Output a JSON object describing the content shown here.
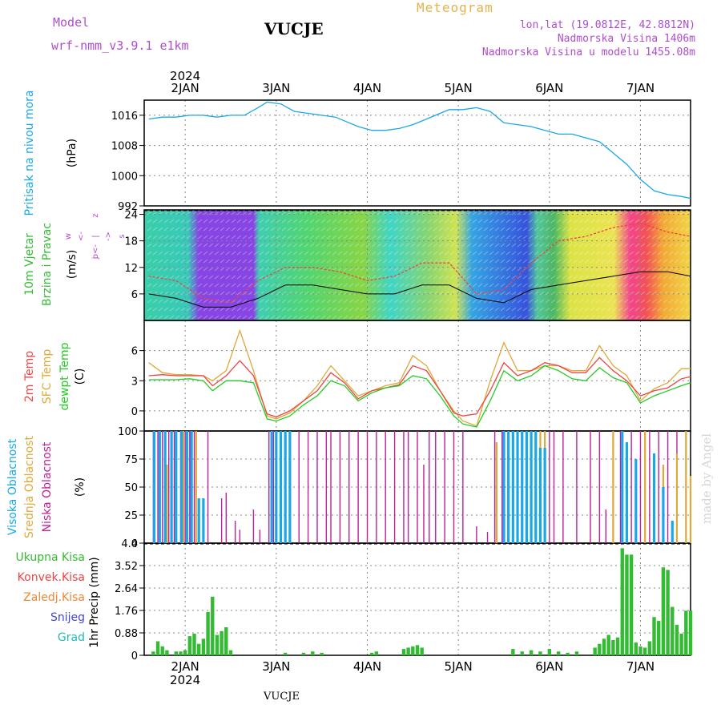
{
  "header": {
    "model_label": "Model",
    "model_name": "wrf-nmm_v3.9.1 e1km",
    "station": "VUCJE",
    "meteogram_label": "Meteogram",
    "lonlat": "lon,lat (19.0812E, 42.8812N)",
    "elevation": "Nadmorska Visina 1406m",
    "model_elevation": "Nadmorska Visina u modelu 1455.08m"
  },
  "footer": {
    "station": "VUCJE",
    "signature": "made by Angel"
  },
  "time_axis": {
    "year_label": "2024",
    "day_labels": [
      "2JAN",
      "3JAN",
      "4JAN",
      "5JAN",
      "6JAN",
      "7JAN"
    ]
  },
  "colors": {
    "pressure": "#1aa7e6",
    "temp2m": "#ee4444",
    "sfc": "#e0a838",
    "dewpt": "#22cc22",
    "wind_speed": "#000000",
    "gust": "#ee4444",
    "cloud_high": "#1aa7e6",
    "cloud_mid": "#e0a838",
    "cloud_low": "#c0209a",
    "precip_total": "#33bb33",
    "precip_conv": "#ee4444",
    "precip_frz": "#ee8833",
    "precip_snow": "#4444dd",
    "precip_hail": "#22bbbb"
  },
  "chart_data": [
    {
      "type": "line",
      "panel": "pressure",
      "title_parts": [
        "Pritisak na nivou mora",
        "(hPa)"
      ],
      "ylim": [
        992,
        1020
      ],
      "yticks": [
        992,
        1000,
        1008,
        1016
      ],
      "x": [
        1.6,
        1.75,
        1.9,
        2.05,
        2.2,
        2.35,
        2.5,
        2.65,
        2.8,
        2.9,
        3.05,
        3.2,
        3.35,
        3.5,
        3.65,
        3.8,
        3.9,
        4.05,
        4.2,
        4.35,
        4.5,
        4.65,
        4.8,
        4.9,
        5.05,
        5.2,
        5.35,
        5.5,
        5.65,
        5.8,
        5.95,
        6.1,
        6.25,
        6.4,
        6.55,
        6.7,
        6.85,
        7.0,
        7.15,
        7.3,
        7.45,
        7.55
      ],
      "series": [
        {
          "values": [
            1015,
            1015.5,
            1015.5,
            1016,
            1016,
            1015.5,
            1016,
            1016,
            1018,
            1019.5,
            1019,
            1017,
            1016.5,
            1016,
            1015.5,
            1014,
            1013,
            1012,
            1012,
            1012.5,
            1013.5,
            1015,
            1016.5,
            1017.5,
            1017.5,
            1018,
            1017,
            1014,
            1013.5,
            1013,
            1012,
            1011,
            1011,
            1010,
            1009,
            1006,
            1003,
            999,
            996,
            995,
            994.5,
            994
          ]
        }
      ]
    },
    {
      "type": "line",
      "panel": "wind",
      "title_parts": [
        "10m Vjetar",
        "Brzina i Pravac",
        "(m/s)"
      ],
      "compass": [
        "z",
        "w",
        "<-",
        "|",
        "->",
        "s",
        "j",
        "o<-"
      ],
      "ylim": [
        0,
        25
      ],
      "yticks": [
        6,
        12,
        18,
        24
      ],
      "x": [
        1.6,
        1.9,
        2.2,
        2.5,
        2.8,
        3.1,
        3.4,
        3.7,
        4.0,
        4.3,
        4.6,
        4.9,
        5.2,
        5.5,
        5.8,
        6.1,
        6.4,
        6.7,
        7.0,
        7.3,
        7.55
      ],
      "series": [
        {
          "name": "speed",
          "values": [
            6,
            5,
            3,
            3,
            5,
            8,
            8,
            7,
            6,
            6,
            8,
            8,
            5,
            4,
            7,
            8,
            9,
            10,
            11,
            11,
            10
          ]
        },
        {
          "name": "gust",
          "values": [
            10,
            9,
            5,
            4,
            9,
            12,
            12,
            11,
            9,
            10,
            13,
            13,
            6,
            7,
            13,
            18,
            19,
            21,
            22,
            20,
            19
          ]
        }
      ]
    },
    {
      "type": "line",
      "panel": "temperature",
      "title_parts": [
        "2m Temp",
        "SFC Temp",
        "dewpt Temp",
        "(C)"
      ],
      "ylim": [
        -2,
        9
      ],
      "yticks": [
        0,
        3,
        6
      ],
      "x": [
        1.6,
        1.75,
        1.9,
        2.05,
        2.2,
        2.3,
        2.45,
        2.6,
        2.75,
        2.9,
        3.0,
        3.15,
        3.3,
        3.45,
        3.6,
        3.75,
        3.9,
        4.05,
        4.2,
        4.35,
        4.5,
        4.65,
        4.8,
        4.95,
        5.05,
        5.2,
        5.35,
        5.5,
        5.65,
        5.8,
        5.95,
        6.1,
        6.25,
        6.4,
        6.55,
        6.7,
        6.85,
        7.0,
        7.15,
        7.3,
        7.45,
        7.55
      ],
      "series": [
        {
          "name": "sfc",
          "values": [
            4.8,
            3.8,
            3.6,
            3.6,
            3.5,
            3.0,
            4.0,
            8.0,
            4.0,
            -0.5,
            -0.8,
            -0.2,
            1.0,
            2.5,
            4.5,
            3.0,
            1.5,
            2.0,
            2.5,
            2.8,
            5.5,
            4.5,
            2.0,
            0.0,
            -1.0,
            -1.5,
            3.0,
            6.8,
            4.0,
            4.0,
            4.5,
            4.5,
            4.0,
            4.0,
            6.5,
            4.5,
            3.5,
            1.0,
            2.2,
            2.8,
            4.2,
            4.2
          ]
        },
        {
          "name": "temp2m",
          "values": [
            3.5,
            3.6,
            3.5,
            3.5,
            3.5,
            2.5,
            3.5,
            5.0,
            3.5,
            -0.3,
            -0.6,
            0.0,
            1.0,
            2.0,
            3.8,
            2.8,
            1.2,
            2.0,
            2.3,
            2.6,
            4.5,
            4.0,
            2.0,
            -0.2,
            -0.5,
            -0.3,
            2.0,
            4.8,
            3.5,
            4.0,
            4.8,
            4.5,
            3.8,
            3.8,
            5.3,
            4.0,
            3.0,
            1.5,
            2.0,
            2.3,
            3.2,
            3.4
          ]
        },
        {
          "name": "dewpt",
          "values": [
            3.1,
            3.1,
            3.1,
            3.2,
            3.0,
            2.0,
            3.0,
            3.0,
            2.8,
            -0.8,
            -1.0,
            -0.5,
            0.6,
            1.5,
            3.0,
            2.5,
            1.0,
            1.8,
            2.3,
            2.5,
            3.5,
            3.2,
            1.5,
            -0.5,
            -1.3,
            -1.6,
            1.0,
            4.0,
            3.0,
            3.5,
            4.5,
            4.0,
            3.2,
            3.0,
            4.3,
            3.3,
            2.8,
            0.8,
            1.5,
            2.0,
            2.5,
            2.8
          ]
        }
      ]
    },
    {
      "type": "bar",
      "panel": "clouds",
      "title_parts": [
        "Visoka Oblacnost",
        "Srednja Oblacnost",
        "Niska Oblacnost",
        "(%)"
      ],
      "ylim": [
        0,
        100
      ],
      "yticks": [
        0,
        25,
        50,
        75,
        100
      ],
      "series": [
        {
          "name": "low",
          "x": [
            1.65,
            1.7,
            1.75,
            1.82,
            1.88,
            1.95,
            2.0,
            2.05,
            2.1,
            2.25,
            2.4,
            2.45,
            2.55,
            2.6,
            2.75,
            2.82,
            2.92,
            2.97,
            3.05,
            3.1,
            3.15,
            3.25,
            3.35,
            3.45,
            3.55,
            3.6,
            3.7,
            3.8,
            3.9,
            4.0,
            4.1,
            4.2,
            4.3,
            4.4,
            4.45,
            4.55,
            4.62,
            4.68,
            4.75,
            4.85,
            4.95,
            5.05,
            5.2,
            5.32,
            5.4,
            5.48,
            5.55,
            5.75,
            6.0,
            6.05,
            6.15,
            6.3,
            6.45,
            6.55,
            6.62,
            6.7,
            6.78,
            6.9,
            7.0,
            7.1,
            7.2,
            7.3,
            7.4,
            7.5
          ],
          "values": [
            100,
            100,
            100,
            100,
            100,
            100,
            100,
            100,
            100,
            100,
            40,
            45,
            20,
            12,
            30,
            12,
            100,
            100,
            100,
            100,
            100,
            100,
            100,
            100,
            100,
            100,
            100,
            100,
            100,
            100,
            100,
            100,
            100,
            100,
            100,
            100,
            70,
            100,
            100,
            100,
            100,
            100,
            15,
            10,
            100,
            100,
            100,
            100,
            100,
            100,
            100,
            100,
            100,
            100,
            30,
            100,
            100,
            100,
            100,
            100,
            100,
            100,
            100,
            100
          ]
        },
        {
          "name": "mid",
          "x": [
            1.8,
            1.98,
            2.12,
            5.42,
            5.5,
            5.6,
            5.9,
            5.95,
            6.7,
            6.85,
            7.05,
            7.25,
            7.4,
            7.5,
            7.55
          ],
          "values": [
            70,
            100,
            100,
            90,
            100,
            100,
            100,
            100,
            100,
            75,
            100,
            70,
            80,
            100,
            60
          ]
        },
        {
          "name": "high",
          "x": [
            1.66,
            1.72,
            1.78,
            1.85,
            1.9,
            1.96,
            2.02,
            2.07,
            2.15,
            2.2,
            2.95,
            3.0,
            3.05,
            3.1,
            3.15,
            5.5,
            5.55,
            5.6,
            5.65,
            5.7,
            5.75,
            5.8,
            5.85,
            5.9,
            5.95,
            6.8,
            6.85,
            6.95,
            7.15,
            7.25,
            7.35
          ],
          "values": [
            100,
            100,
            100,
            100,
            100,
            100,
            100,
            100,
            40,
            40,
            100,
            100,
            100,
            100,
            100,
            100,
            100,
            100,
            100,
            100,
            100,
            100,
            100,
            85,
            85,
            100,
            90,
            75,
            80,
            50,
            20
          ]
        }
      ]
    },
    {
      "type": "bar",
      "panel": "precip",
      "title_parts": [
        "Ukupna Kisa",
        "Konvek.Kisa",
        "Zaledj.Kisa",
        "Snijeg",
        "Grad",
        "1hr Precip (mm)"
      ],
      "ylim": [
        0,
        4.4
      ],
      "yticks": [
        0,
        0.88,
        1.76,
        2.64,
        3.52,
        4.4
      ],
      "x": [
        1.65,
        1.7,
        1.75,
        1.8,
        1.9,
        1.95,
        2.0,
        2.05,
        2.1,
        2.15,
        2.2,
        2.25,
        2.3,
        2.35,
        2.4,
        2.45,
        2.5,
        3.1,
        3.3,
        3.4,
        3.5,
        4.05,
        4.1,
        4.4,
        4.45,
        4.5,
        4.55,
        4.6,
        5.6,
        5.7,
        5.8,
        5.9,
        6.0,
        6.1,
        6.2,
        6.3,
        6.5,
        6.55,
        6.6,
        6.65,
        6.7,
        6.75,
        6.8,
        6.85,
        6.9,
        6.95,
        7.0,
        7.05,
        7.1,
        7.15,
        7.2,
        7.25,
        7.3,
        7.35,
        7.4,
        7.45,
        7.5,
        7.55
      ],
      "values": [
        0.15,
        0.55,
        0.35,
        0.2,
        0.15,
        0.15,
        0.2,
        0.75,
        0.85,
        0.45,
        0.65,
        1.7,
        2.3,
        0.8,
        0.95,
        1.1,
        0.2,
        0.1,
        0.1,
        0.15,
        0.1,
        0.1,
        0.15,
        0.25,
        0.3,
        0.35,
        0.4,
        0.3,
        0.25,
        0.15,
        0.2,
        0.15,
        0.25,
        0.15,
        0.1,
        0.15,
        0.3,
        0.45,
        0.65,
        0.8,
        0.6,
        0.7,
        4.2,
        3.95,
        3.95,
        0.5,
        0.35,
        0.3,
        0.55,
        1.5,
        1.35,
        3.45,
        3.35,
        1.9,
        1.2,
        0.85,
        1.75,
        1.75
      ]
    }
  ]
}
